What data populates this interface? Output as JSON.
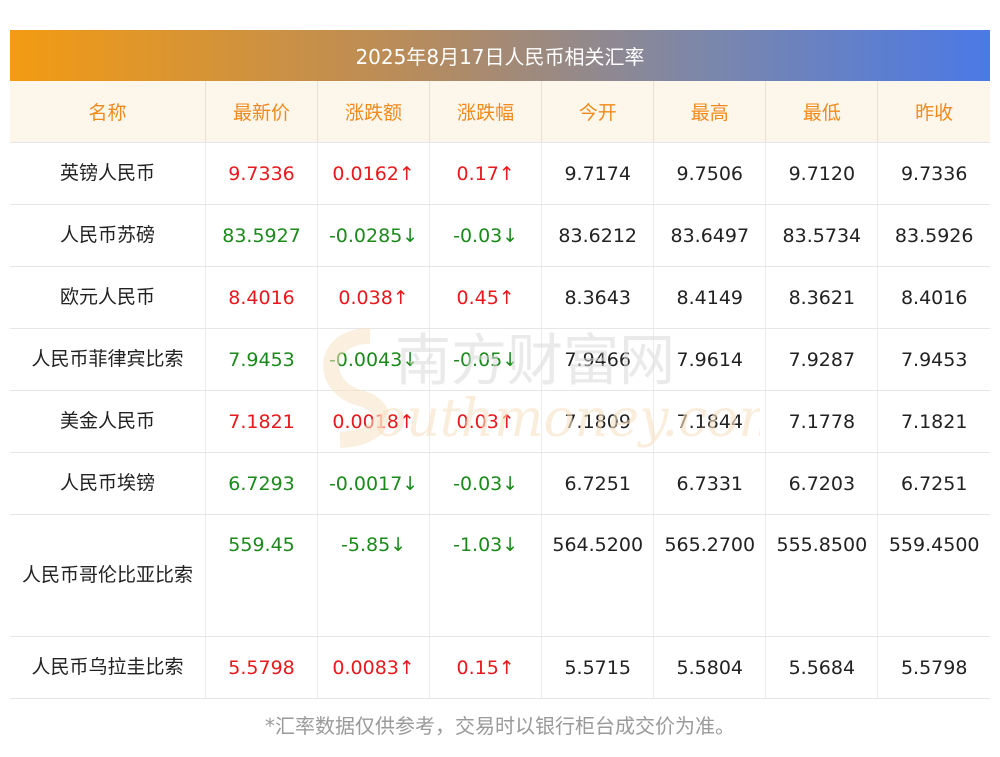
{
  "title": "2025年8月17日人民币相关汇率",
  "headers": [
    "名称",
    "最新价",
    "涨跌额",
    "涨跌幅",
    "今开",
    "最高",
    "最低",
    "昨收"
  ],
  "rows": [
    {
      "name": "英镑人民币",
      "latest": "9.7336",
      "change": "0.0162↑",
      "pct": "0.17↑",
      "open": "9.7174",
      "high": "9.7506",
      "low": "9.7120",
      "prev": "9.7336",
      "dir": "up"
    },
    {
      "name": "人民币苏磅",
      "latest": "83.5927",
      "change": "-0.0285↓",
      "pct": "-0.03↓",
      "open": "83.6212",
      "high": "83.6497",
      "low": "83.5734",
      "prev": "83.5926",
      "dir": "down"
    },
    {
      "name": "欧元人民币",
      "latest": "8.4016",
      "change": "0.038↑",
      "pct": "0.45↑",
      "open": "8.3643",
      "high": "8.4149",
      "low": "8.3621",
      "prev": "8.4016",
      "dir": "up"
    },
    {
      "name": "人民币菲律宾比索",
      "latest": "7.9453",
      "change": "-0.0043↓",
      "pct": "-0.05↓",
      "open": "7.9466",
      "high": "7.9614",
      "low": "7.9287",
      "prev": "7.9453",
      "dir": "down"
    },
    {
      "name": "美金人民币",
      "latest": "7.1821",
      "change": "0.0018↑",
      "pct": "0.03↑",
      "open": "7.1809",
      "high": "7.1844",
      "low": "7.1778",
      "prev": "7.1821",
      "dir": "up"
    },
    {
      "name": "人民币埃镑",
      "latest": "6.7293",
      "change": "-0.0017↓",
      "pct": "-0.03↓",
      "open": "6.7251",
      "high": "6.7331",
      "low": "6.7203",
      "prev": "6.7251",
      "dir": "down"
    },
    {
      "name": "人民币哥伦比亚比索",
      "latest": "559.45",
      "change": "-5.85↓",
      "pct": "-1.03↓",
      "open": "564.5200",
      "high": "565.2700",
      "low": "555.8500",
      "prev": "559.4500",
      "dir": "down"
    },
    {
      "name": "人民币乌拉圭比索",
      "latest": "5.5798",
      "change": "0.0083↑",
      "pct": "0.15↑",
      "open": "5.5715",
      "high": "5.5804",
      "low": "5.5684",
      "prev": "5.5798",
      "dir": "up"
    }
  ],
  "watermark": {
    "cn": "南方财富网",
    "en": "outhmoney.com"
  },
  "footer": "*汇率数据仅供参考，交易时以银行柜台成交价为准。",
  "colors": {
    "up": "#e8191d",
    "down": "#1b8a1b",
    "header_text": "#f08a1c",
    "title_from": "#f39b12",
    "title_to": "#4b79e6"
  }
}
